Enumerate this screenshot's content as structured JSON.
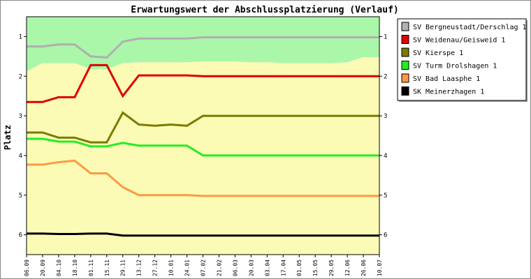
{
  "chart_data": {
    "type": "line",
    "title": "Erwartungswert der Abschlussplatzierung (Verlauf)",
    "ylabel": "Platz",
    "xlabel": "",
    "ylim": [
      0.5,
      6.5
    ],
    "y_inverted": true,
    "yticks": [
      1,
      2,
      3,
      4,
      5,
      6
    ],
    "categories": [
      "06.09",
      "20.09",
      "04.10",
      "18.10",
      "01.11",
      "15.11",
      "29.11",
      "13.12",
      "27.12",
      "10.01",
      "24.01",
      "07.02",
      "21.02",
      "06.03",
      "20.03",
      "03.04",
      "17.04",
      "01.05",
      "15.05",
      "29.05",
      "12.06",
      "26.06",
      "10.07"
    ],
    "legend_position": "right",
    "grid": false,
    "bands": [
      {
        "name": "upper",
        "color": "#aaf7aa",
        "top": [
          0.5,
          0.5,
          0.5,
          0.5,
          0.5,
          0.5,
          0.5,
          0.5,
          0.5,
          0.5,
          0.5,
          0.5,
          0.5,
          0.5,
          0.5,
          0.5,
          0.5,
          0.5,
          0.5,
          0.5,
          0.5,
          0.5,
          0.5
        ],
        "bottom": [
          1.88,
          1.67,
          1.67,
          1.67,
          1.82,
          1.82,
          1.67,
          1.65,
          1.65,
          1.65,
          1.65,
          1.63,
          1.63,
          1.63,
          1.65,
          1.65,
          1.67,
          1.67,
          1.67,
          1.67,
          1.65,
          1.52,
          1.52
        ]
      },
      {
        "name": "middle",
        "color": "#fbfbb5",
        "top": [
          1.88,
          1.67,
          1.67,
          1.67,
          1.82,
          1.82,
          1.67,
          1.65,
          1.65,
          1.65,
          1.65,
          1.63,
          1.63,
          1.63,
          1.65,
          1.65,
          1.67,
          1.67,
          1.67,
          1.67,
          1.65,
          1.52,
          1.52
        ],
        "bottom": [
          6.5,
          6.5,
          6.5,
          6.5,
          6.5,
          6.5,
          6.5,
          6.5,
          6.5,
          6.5,
          6.5,
          6.5,
          6.5,
          6.5,
          6.5,
          6.5,
          6.5,
          6.5,
          6.5,
          6.5,
          6.5,
          6.5,
          6.5
        ]
      }
    ],
    "series": [
      {
        "name": "SV Bergneustadt/Derschlag 1",
        "color": "#b0b0b0",
        "values": [
          1.25,
          1.25,
          1.2,
          1.2,
          1.5,
          1.53,
          1.13,
          1.05,
          1.05,
          1.05,
          1.05,
          1.02,
          1.02,
          1.02,
          1.02,
          1.02,
          1.02,
          1.02,
          1.02,
          1.02,
          1.02,
          1.02,
          1.02
        ]
      },
      {
        "name": "SV Weidenau/Geisweid 1",
        "color": "#e00000",
        "values": [
          2.65,
          2.65,
          2.53,
          2.53,
          1.72,
          1.72,
          2.5,
          1.98,
          1.98,
          1.98,
          1.98,
          2.0,
          2.0,
          2.0,
          2.0,
          2.0,
          2.0,
          2.0,
          2.0,
          2.0,
          2.0,
          2.0,
          2.0
        ]
      },
      {
        "name": "SV Kierspe 1",
        "color": "#7a7a00",
        "values": [
          3.42,
          3.42,
          3.55,
          3.55,
          3.67,
          3.67,
          2.92,
          3.22,
          3.25,
          3.22,
          3.25,
          3.0,
          3.0,
          3.0,
          3.0,
          3.0,
          3.0,
          3.0,
          3.0,
          3.0,
          3.0,
          3.0,
          3.0
        ]
      },
      {
        "name": "SV Turm Drolshagen 1",
        "color": "#22ee22",
        "values": [
          3.58,
          3.58,
          3.65,
          3.65,
          3.77,
          3.77,
          3.68,
          3.75,
          3.75,
          3.75,
          3.75,
          4.0,
          4.0,
          4.0,
          4.0,
          4.0,
          4.0,
          4.0,
          4.0,
          4.0,
          4.0,
          4.0,
          4.0
        ]
      },
      {
        "name": "SV Bad Laasphe 1",
        "color": "#ff9944",
        "values": [
          4.23,
          4.23,
          4.17,
          4.13,
          4.45,
          4.45,
          4.8,
          5.0,
          5.0,
          5.0,
          5.0,
          5.02,
          5.02,
          5.02,
          5.02,
          5.02,
          5.02,
          5.02,
          5.02,
          5.02,
          5.02,
          5.02,
          5.02
        ]
      },
      {
        "name": "SK Meinerzhagen 1",
        "color": "#000000",
        "values": [
          5.97,
          5.97,
          5.98,
          5.98,
          5.97,
          5.97,
          6.02,
          6.02,
          6.02,
          6.02,
          6.02,
          6.02,
          6.02,
          6.02,
          6.02,
          6.02,
          6.02,
          6.02,
          6.02,
          6.02,
          6.02,
          6.02,
          6.02
        ]
      }
    ]
  }
}
